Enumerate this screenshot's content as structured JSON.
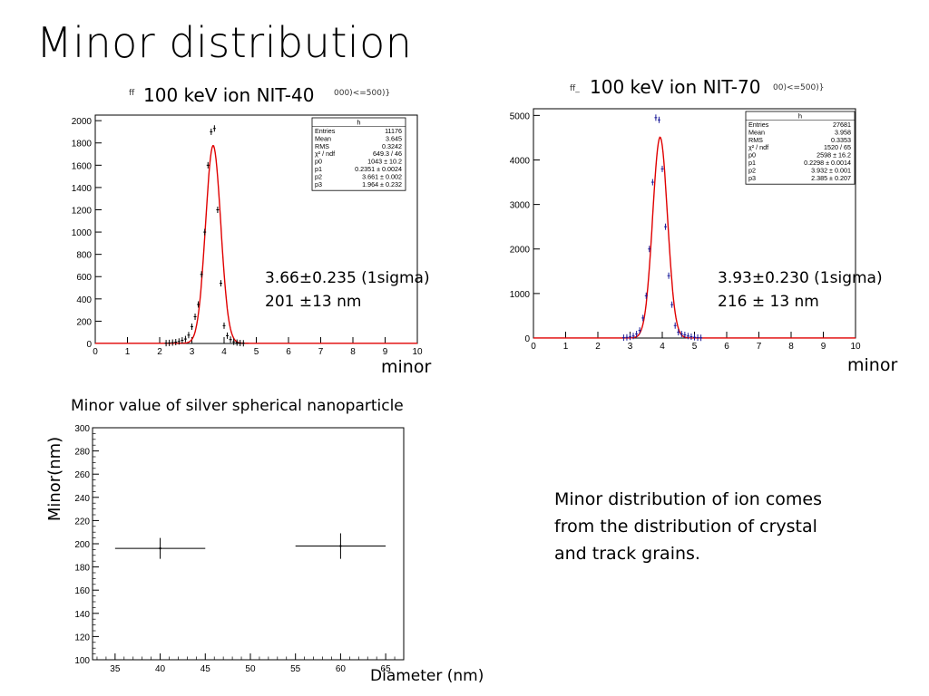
{
  "slide": {
    "title": "Minor distribution",
    "left_plot_tag": "ff",
    "left_plot_title": "100 keV ion NIT-40",
    "left_plot_suffix": "000)<=500)}",
    "right_plot_tag": "ff_",
    "right_plot_title": "100 keV ion NIT-70",
    "right_plot_suffix": "00)<=500)}",
    "left_anno_line1": "3.66±0.235 (1sigma)",
    "left_anno_line2": "201 ±13 nm",
    "right_anno_line1": "3.93±0.230 (1sigma)",
    "right_anno_line2": "216 ± 13 nm",
    "left_xlabel": "minor",
    "right_xlabel": "minor",
    "bottom_caption": "Minor value of silver spherical nanoparticle",
    "bottom_ylabel": "Minor(nm)",
    "bottom_xlabel": "Diameter (nm)",
    "body_text": "Minor distribution of ion comes from the distribution of crystal and track grains."
  },
  "chart_data": [
    {
      "type": "scatter",
      "title": "100 keV ion NIT-40",
      "xlabel": "minor",
      "xlim": [
        0,
        10
      ],
      "ylim": [
        0,
        2050
      ],
      "xticks": [
        0,
        1,
        2,
        3,
        4,
        5,
        6,
        7,
        8,
        9,
        10
      ],
      "yticks": [
        0,
        200,
        400,
        600,
        800,
        1000,
        1200,
        1400,
        1600,
        1800,
        2000
      ],
      "stats": {
        "header": "h",
        "rows": [
          [
            "Entries",
            "11176"
          ],
          [
            "Mean",
            "3.645"
          ],
          [
            "RMS",
            "0.3242"
          ],
          [
            "χ² / ndf",
            "649.3 / 46"
          ],
          [
            "p0",
            "1043 ± 10.2"
          ],
          [
            "p1",
            "0.2351 ± 0.0024"
          ],
          [
            "p2",
            "3.661 ± 0.002"
          ],
          [
            "p3",
            "1.964 ± 0.232"
          ]
        ]
      },
      "fit": {
        "amplitude": 1775,
        "mean": 3.661,
        "sigma": 0.2351,
        "offset": 2
      },
      "series": [
        {
          "color": "#000000",
          "x": [
            2.2,
            2.3,
            2.4,
            2.5,
            2.6,
            2.7,
            2.8,
            2.9,
            3.0,
            3.1,
            3.2,
            3.3,
            3.4,
            3.5,
            3.6,
            3.7,
            3.8,
            3.9,
            4.0,
            4.1,
            4.2,
            4.3,
            4.4,
            4.5,
            4.6
          ],
          "y": [
            3,
            5,
            8,
            12,
            18,
            28,
            40,
            75,
            150,
            240,
            350,
            620,
            1000,
            1600,
            1900,
            1930,
            1200,
            540,
            160,
            70,
            35,
            15,
            8,
            4,
            2
          ]
        }
      ]
    },
    {
      "type": "scatter",
      "title": "100 keV ion NIT-70",
      "xlabel": "minor",
      "xlim": [
        0,
        10
      ],
      "ylim": [
        0,
        5150
      ],
      "xticks": [
        0,
        1,
        2,
        3,
        4,
        5,
        6,
        7,
        8,
        9,
        10
      ],
      "yticks": [
        0,
        1000,
        2000,
        3000,
        4000,
        5000
      ],
      "stats": {
        "header": "h",
        "rows": [
          [
            "Entries",
            "27681"
          ],
          [
            "Mean",
            "3.958"
          ],
          [
            "RMS",
            "0.3353"
          ],
          [
            "χ² / ndf",
            "1520 / 65"
          ],
          [
            "p0",
            "2598 ± 16.2"
          ],
          [
            "p1",
            "0.2298 ± 0.0014"
          ],
          [
            "p2",
            "3.932 ± 0.001"
          ],
          [
            "p3",
            "2.385 ± 0.207"
          ]
        ]
      },
      "fit": {
        "amplitude": 4510,
        "mean": 3.932,
        "sigma": 0.2298,
        "offset": 2
      },
      "series": [
        {
          "color": "#1a1a99",
          "x": [
            2.8,
            2.9,
            3.0,
            3.1,
            3.2,
            3.3,
            3.4,
            3.5,
            3.6,
            3.7,
            3.8,
            3.9,
            4.0,
            4.1,
            4.2,
            4.3,
            4.4,
            4.5,
            4.6,
            4.7,
            4.8,
            4.9,
            5.0,
            5.1,
            5.2
          ],
          "y": [
            8,
            15,
            25,
            45,
            90,
            170,
            450,
            950,
            2000,
            3500,
            4950,
            4900,
            3800,
            2500,
            1400,
            750,
            280,
            130,
            90,
            70,
            45,
            30,
            18,
            10,
            5
          ]
        }
      ]
    },
    {
      "type": "scatter",
      "title": "",
      "xlabel": "Diameter (nm)",
      "ylabel": "Minor(nm)",
      "xlim": [
        32.5,
        67
      ],
      "ylim": [
        100,
        300
      ],
      "xticks": [
        35,
        40,
        45,
        50,
        55,
        60,
        65
      ],
      "yticks": [
        100,
        120,
        140,
        160,
        180,
        200,
        220,
        240,
        260,
        280,
        300
      ],
      "points": [
        {
          "x": 40,
          "y": 196,
          "xerr": 5,
          "yerr": 9
        },
        {
          "x": 60,
          "y": 198,
          "xerr": 5,
          "yerr": 11
        }
      ]
    }
  ]
}
